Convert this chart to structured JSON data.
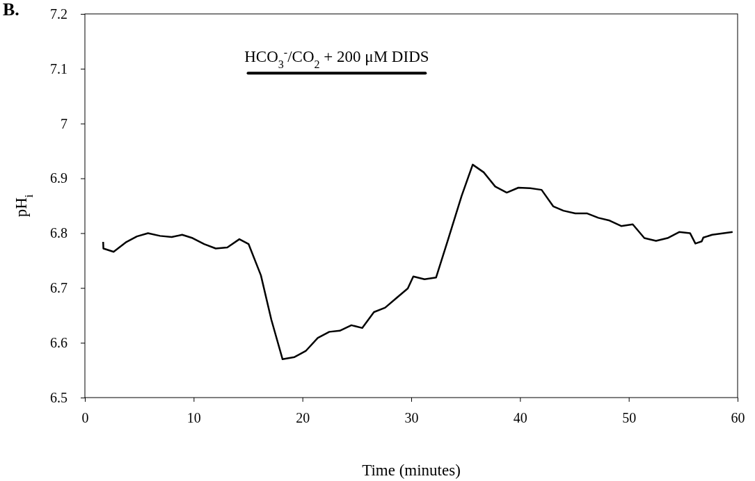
{
  "chart_data": {
    "type": "line",
    "xlabel": "Time (minutes)",
    "ylabel": "pH$_{i}$",
    "annotations": [
      "B."
    ],
    "xlim": [
      0,
      60
    ],
    "xticks": [
      0,
      10,
      20,
      30,
      40,
      50,
      60
    ],
    "ylim": [
      6.5,
      7.2
    ],
    "yticks": [
      6.5,
      6.6,
      6.7,
      6.8,
      6.9,
      7,
      7.1,
      7.2
    ],
    "grid": false,
    "marker": "none",
    "line_style": "solid",
    "series": [
      {
        "name": "HCO$_{3}$$^{-}$/CO$_{2}$ + 200 μM DIDS",
        "color": "#000000",
        "x": [
          15.0,
          31.3
        ],
        "values": [
          7.092,
          7.092
        ]
      },
      {
        "color": "#000000",
        "x": [
          1.68,
          1.7,
          2.64,
          3.82,
          4.78,
          5.8,
          6.91,
          7.98,
          8.94,
          9.9,
          10.96,
          12.03,
          13.09,
          14.2,
          15.05,
          16.18,
          17.14,
          18.17,
          19.27,
          20.3,
          21.41,
          22.47,
          23.43,
          24.5,
          25.5,
          26.57,
          27.6,
          28.66,
          29.68,
          30.19,
          31.22,
          32.28,
          33.35,
          34.63,
          35.65,
          36.66,
          37.72,
          38.78,
          39.85,
          40.92,
          41.98,
          43.05,
          43.99,
          45.08,
          46.18,
          47.2,
          48.23,
          49.3,
          50.36,
          51.43,
          52.5,
          53.56,
          54.63,
          55.63,
          56.12,
          56.7,
          56.85,
          57.66,
          59.54
        ],
        "values": [
          6.784,
          6.772,
          6.766,
          6.784,
          6.794,
          6.8,
          6.795,
          6.793,
          6.797,
          6.791,
          6.78,
          6.772,
          6.774,
          6.789,
          6.78,
          6.723,
          6.642,
          6.57,
          6.574,
          6.585,
          6.609,
          6.62,
          6.622,
          6.632,
          6.627,
          6.656,
          6.664,
          6.682,
          6.699,
          6.721,
          6.716,
          6.719,
          6.786,
          6.868,
          6.925,
          6.911,
          6.885,
          6.874,
          6.883,
          6.882,
          6.879,
          6.849,
          6.841,
          6.836,
          6.836,
          6.828,
          6.823,
          6.813,
          6.816,
          6.791,
          6.786,
          6.791,
          6.802,
          6.8,
          6.781,
          6.785,
          6.792,
          6.797,
          6.802
        ]
      }
    ]
  }
}
